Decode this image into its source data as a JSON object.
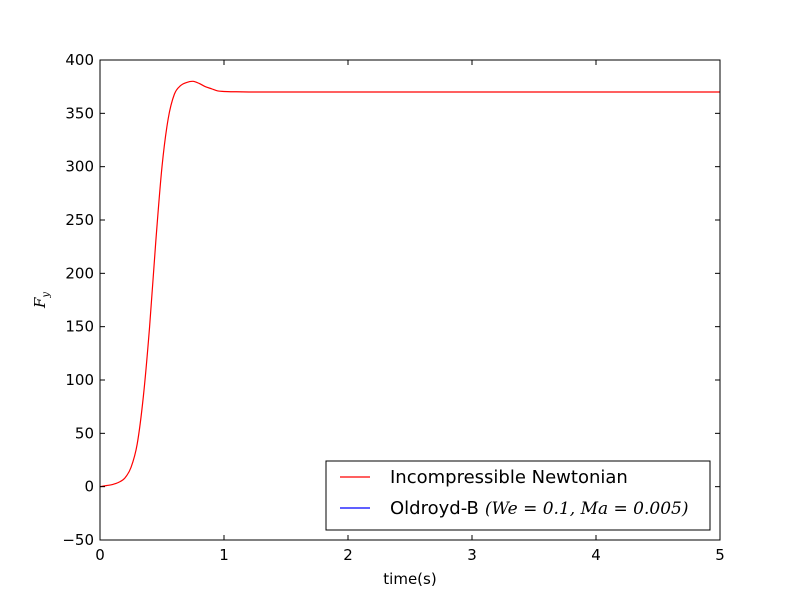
{
  "chart_data": {
    "type": "line",
    "xlabel": "time(s)",
    "ylabel": "F",
    "ylabel_sub": "y",
    "xlim": [
      0,
      5
    ],
    "ylim": [
      -50,
      400
    ],
    "x_ticks": [
      0,
      1,
      2,
      3,
      4,
      5
    ],
    "y_ticks": [
      -50,
      0,
      50,
      100,
      150,
      200,
      250,
      300,
      350,
      400
    ],
    "x_tick_labels": [
      "0",
      "1",
      "2",
      "3",
      "4",
      "5"
    ],
    "y_tick_labels": [
      "−50",
      "0",
      "50",
      "100",
      "150",
      "200",
      "250",
      "300",
      "350",
      "400"
    ],
    "grid": false,
    "legend_position": "lower-right",
    "series": [
      {
        "name": "Incompressible Newtonian",
        "color": "#ff0000",
        "x": [
          0,
          0.05,
          0.1,
          0.15,
          0.2,
          0.25,
          0.3,
          0.35,
          0.4,
          0.45,
          0.5,
          0.55,
          0.6,
          0.65,
          0.7,
          0.75,
          0.8,
          0.85,
          0.9,
          0.95,
          1.0,
          1.1,
          1.2,
          1.3,
          1.5,
          2.0,
          3.0,
          4.0,
          5.0
        ],
        "y": [
          0,
          1,
          2,
          4,
          8,
          18,
          40,
          85,
          150,
          230,
          300,
          345,
          368,
          376,
          379,
          380,
          378,
          375,
          373,
          371,
          370.5,
          370.2,
          370,
          370,
          370,
          370,
          370,
          370,
          370
        ]
      },
      {
        "name": "Oldroyd-B",
        "name_math": "(We = 0.1, Ma = 0.005)",
        "color": "#0000ff",
        "x": [],
        "y": []
      }
    ]
  }
}
